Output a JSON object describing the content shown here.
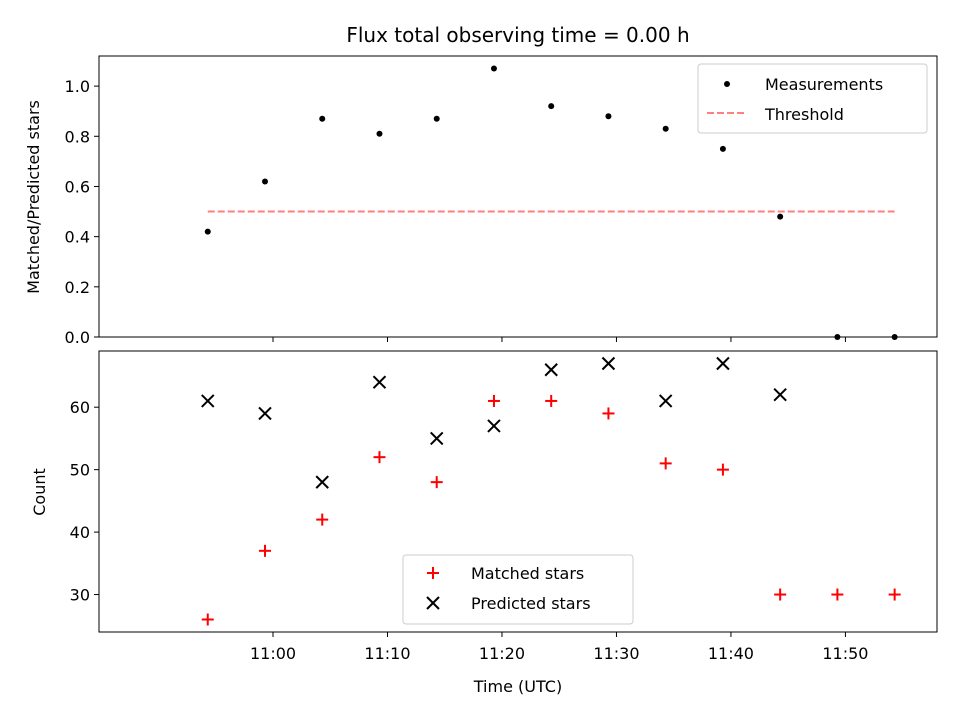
{
  "chart_data": {
    "title": "Flux total observing time = 0.00 h",
    "xlabel": "Time (UTC)",
    "x_tick_labels": [
      "11:00",
      "11:10",
      "11:20",
      "11:30",
      "11:40",
      "11:50"
    ],
    "x_tick_minutes": [
      60,
      70,
      80,
      90,
      100,
      110
    ],
    "xlim_minutes": [
      44.8,
      118.0
    ],
    "times": [
      "10:54",
      "10:59",
      "11:04",
      "11:09",
      "11:14",
      "11:19",
      "11:24",
      "11:29",
      "11:34",
      "11:39",
      "11:44",
      "11:49",
      "11:54"
    ],
    "times_minutes": [
      54.3,
      59.3,
      64.3,
      69.3,
      74.3,
      79.3,
      84.3,
      89.3,
      94.3,
      99.3,
      104.3,
      109.3,
      114.3
    ],
    "top": {
      "type": "scatter",
      "ylabel": "Matched/Predicted stars",
      "ylim": [
        0.0,
        1.12
      ],
      "y_ticks": [
        0.0,
        0.2,
        0.4,
        0.6,
        0.8,
        1.0
      ],
      "y_tick_labels": [
        "0.0",
        "0.2",
        "0.4",
        "0.6",
        "0.8",
        "1.0"
      ],
      "series": [
        {
          "name": "Measurements",
          "values": [
            0.42,
            0.62,
            0.87,
            0.81,
            0.87,
            1.07,
            0.92,
            0.88,
            0.83,
            0.75,
            0.48,
            0.0,
            0.0
          ],
          "color": "#000000",
          "marker": "dot"
        }
      ],
      "threshold": {
        "name": "Threshold",
        "value": 0.5,
        "color": "#ff7f7f",
        "style": "dashed"
      },
      "legend": "top-right"
    },
    "bottom": {
      "type": "scatter",
      "ylabel": "Count",
      "ylim": [
        24,
        69
      ],
      "y_ticks": [
        30,
        40,
        50,
        60
      ],
      "y_tick_labels": [
        "30",
        "40",
        "50",
        "60"
      ],
      "series": [
        {
          "name": "Matched stars",
          "values": [
            26,
            37,
            42,
            52,
            48,
            61,
            61,
            59,
            51,
            50,
            30,
            30,
            30
          ],
          "color": "#ff0000",
          "marker": "plus"
        },
        {
          "name": "Predicted stars",
          "values": [
            61,
            59,
            48,
            64,
            55,
            57,
            66,
            67,
            61,
            67,
            62,
            null,
            null
          ],
          "color": "#000000",
          "marker": "x"
        }
      ],
      "legend": "bottom-center"
    }
  }
}
